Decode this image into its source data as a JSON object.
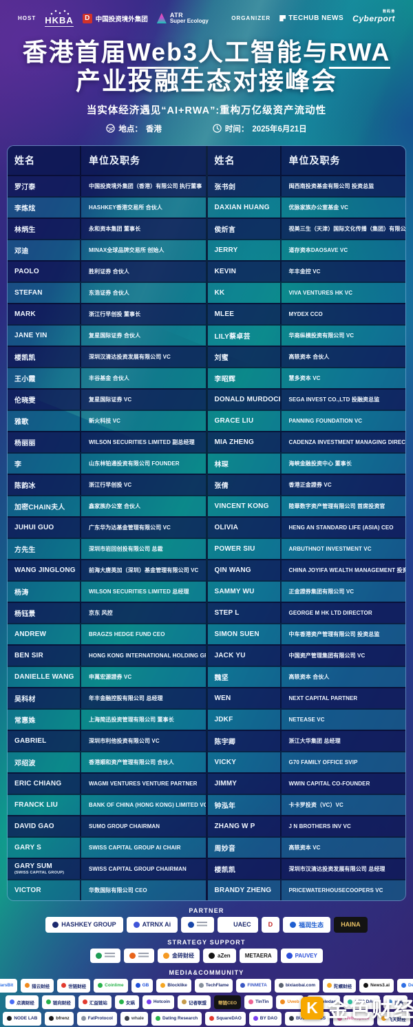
{
  "header": {
    "host_label": "HOST",
    "organizer_label": "ORGANIZER",
    "hkba": "HKBA",
    "citic_icon": "D",
    "citic": "中国投资境外集团",
    "atr_line1": "ATR",
    "atr_line2": "Super Ecology",
    "techub": "TECHUB NEWS",
    "cyberport_cn": "数码港",
    "cyberport": "Cyberport"
  },
  "title": {
    "l1a": "香港首届",
    "l1b": "Web3",
    "l1c": "人工智能与",
    "l1d": "RWA",
    "l2": "产业投融生态对接峰会",
    "subtitle": "当实体经济遇见“AI+RWA”:重构万亿级资产流动性",
    "location_label": "地点：",
    "location_value": "香港",
    "time_label": "时间：",
    "time_value": "2025年6月21日"
  },
  "table": {
    "name_header": "姓名",
    "org_header": "单位及职务",
    "left_rows": [
      {
        "name": "罗汀泰",
        "org": "中国投资境外集团（香港）有限公司 执行董事"
      },
      {
        "name": "李炼炫",
        "org": "HASHKEY香港交易所 合伙人"
      },
      {
        "name": "林炳生",
        "org": "永和资本集团 董事长"
      },
      {
        "name": "邓迪",
        "org": "MINAX全球品牌交易所 创始人"
      },
      {
        "name": "PAOLO",
        "org": "胜利证券 合伙人"
      },
      {
        "name": "STEFAN",
        "org": "东浩证券 合伙人"
      },
      {
        "name": "MARK",
        "org": "浙江行早创投 董事长"
      },
      {
        "name": "JANE YIN",
        "org": "复星国际证券 合伙人"
      },
      {
        "name": "楼凯凯",
        "org": "深圳汉清达投资发展有限公司 VC"
      },
      {
        "name": "王小霞",
        "org": "丰谷基金 合伙人"
      },
      {
        "name": "伦晓雯",
        "org": "复星国际证券 VC"
      },
      {
        "name": "雅歌",
        "org": "新火科技 VC"
      },
      {
        "name": "杨丽丽",
        "org": "WILSON SECURITIES LIMITED 副总经理"
      },
      {
        "name": "李",
        "org": "山东林铂通投资有限公司 FOUNDER"
      },
      {
        "name": "陈韵冰",
        "org": "浙江行早创投 VC"
      },
      {
        "name": "加密CHAIN夫人",
        "org": "鑫家族办公室 合伙人"
      },
      {
        "name": "JUHUI GUO",
        "org": "广东华为达基金管理有限公司 VC"
      },
      {
        "name": "方先生",
        "org": "深圳市岩回创投有限公司 总裁"
      },
      {
        "name": "WANG JINGLONG",
        "org": "前海大唐英加（深圳）基金管理有限公司 VC"
      },
      {
        "name": "杨涛",
        "org": "WILSON SECURITIES LIMITED 总经理"
      },
      {
        "name": "杨钰景",
        "org": "京东 风控"
      },
      {
        "name": "ANDREW",
        "org": "BRAGZS HEDGE FUND CEO"
      },
      {
        "name": "BEN SIR",
        "org": "HONG KONG INTERNATIONAL HOLDING GROUP. CEO"
      },
      {
        "name": "DANIELLE WANG",
        "org": "申萬宏源證券 VC"
      },
      {
        "name": "吴科材",
        "org": "年丰金融控股有限公司 总经理"
      },
      {
        "name": "常惠姝",
        "org": "上海简迅投资管理有限公司 董事长"
      },
      {
        "name": "GABRIEL",
        "org": "深圳市利他投资有限公司 VC"
      },
      {
        "name": "邓绍波",
        "org": "香港顺和资产管理有限公司 合伙人"
      },
      {
        "name": "ERIC CHIANG",
        "org": "WAGMI VENTURES VENTURE PARTNER"
      },
      {
        "name": "FRANCK LIU",
        "org": "BANK OF CHINA (HONG KONG) LIMITED VC"
      },
      {
        "name": "DAVID GAO",
        "org": "SUMO GROUP CHAIRMAN"
      },
      {
        "name": "GARY S",
        "org": "SWISS CAPITAL GROUP AI CHAIR"
      },
      {
        "name": "GARY SUM",
        "sub": "(SWISS CAPITAL GROUP)",
        "org": "SWISS CAPITAL GROUP CHAIRMAN"
      },
      {
        "name": "VICTOR",
        "org": "华数国际有限公司 CEO"
      }
    ],
    "right_rows": [
      {
        "name": "张书剑",
        "org": "闽西南投资基金有限公司 投资总监"
      },
      {
        "name": "DAXIAN HUANG",
        "org": "优脉家族办公室基金 VC"
      },
      {
        "name": "侯炘言",
        "org": "视美三生（天津）国际文化传播（集团）有限公司 VC"
      },
      {
        "name": "JERRY",
        "org": "道存资本DAOSAVE VC"
      },
      {
        "name": "KEVIN",
        "org": "年丰金控 VC"
      },
      {
        "name": "KK",
        "org": "VIVA VENTURES HK VC"
      },
      {
        "name": "MLEE",
        "org": "MYDEX CCO"
      },
      {
        "name": "LILY蔡卓芸",
        "org": "华商纵横投资有限公司 VC"
      },
      {
        "name": "刘蜜",
        "org": "高轶资本 合伙人"
      },
      {
        "name": "李昭辉",
        "org": "慧多资本 VC"
      },
      {
        "name": "DONALD MURDOCH",
        "org": "SEGA INVEST CO.,LTD 投融资总监"
      },
      {
        "name": "GRACE LIU",
        "org": "PANNING FOUNDATION VC"
      },
      {
        "name": "MIA ZHENG",
        "org": "CADENZA INVESTMENT MANAGING DIRECTOR"
      },
      {
        "name": "林琛",
        "org": "海峡金融投资中心 董事长"
      },
      {
        "name": "张倩",
        "org": "香港正金證券 VC"
      },
      {
        "name": "VINCENT KONG",
        "org": "陸華数字资产管理有限公司 首席投资官"
      },
      {
        "name": "OLIVIA",
        "org": "HENG AN STANDARD LIFE (ASIA) CEO"
      },
      {
        "name": "POWER SIU",
        "org": "ARBUTHNOT INVESTMENT VC"
      },
      {
        "name": "QIN WANG",
        "org": "CHINA JOYIFA WEALTH MANAGEMENT 投资主管"
      },
      {
        "name": "SAMMY WU",
        "org": "正金證券集团有限公司 VC"
      },
      {
        "name": "STEP L",
        "org": "GEORGE M HK LTD DIRECTOR"
      },
      {
        "name": "SIMON SUEN",
        "org": "中车香港资产管理有限公司 投资总监"
      },
      {
        "name": "JACK YU",
        "org": "中国资产管理集团有限公司 VC"
      },
      {
        "name": "魏坚",
        "org": "高轶资本 合伙人"
      },
      {
        "name": "WEN",
        "org": "NEXT CAPITAL PARTNER"
      },
      {
        "name": "JDKF",
        "org": "NETEASE VC"
      },
      {
        "name": "陈宇卿",
        "org": "浙江大华集团 总经理"
      },
      {
        "name": "VICKY",
        "org": "G70 FAMILY OFFICE SVIP"
      },
      {
        "name": "JIMMY",
        "org": "WWIN CAPITAL CO-FOUNDER"
      },
      {
        "name": "钟泓年",
        "org": "卡卡罗投资（VC）VC"
      },
      {
        "name": "ZHANG W P",
        "org": "J N BROTHERS INV VC"
      },
      {
        "name": "周妙音",
        "org": "高轶资本 VC"
      },
      {
        "name": "楼凯凯",
        "org": "深圳市汉清达投资发展有限公司 总经理"
      },
      {
        "name": "BRANDY ZHENG",
        "org": "PRICEWATERHOUSECOOPERS VC"
      }
    ]
  },
  "footer": {
    "partner_label": "PARTNER",
    "partners": [
      {
        "label": "HASHKEY GROUP",
        "dot": "#1c2a6e"
      },
      {
        "label": "ATRNX Ai",
        "dot": "#3f55d8"
      },
      {
        "label": "",
        "dot": "#1846a8"
      },
      {
        "label": "UAEC",
        "dot": "#d8a row",
        "tc": "#1c2a6e"
      },
      {
        "label": "D",
        "dot": null,
        "tc": "#c01f1f"
      },
      {
        "label": "福润生态",
        "dot": "#1f5fd0",
        "tc": "#1f5fd0"
      },
      {
        "label": "HAINA",
        "dark": true
      }
    ],
    "strategy_label": "STRATEGY SUPPORT",
    "strategy": [
      {
        "label": "",
        "dot": "#1f9d55"
      },
      {
        "label": "",
        "dot": "#e8641a"
      },
      {
        "label": "金砖财经",
        "dot": "#f59a23"
      },
      {
        "label": "aZen",
        "dot": "#141414",
        "tc": "#141414"
      },
      {
        "label": "METAERA",
        "dot": null,
        "tc": "#141414"
      },
      {
        "label": "PAUVEY",
        "dot": "#2b4fd8",
        "tc": "#2b4fd8"
      }
    ],
    "media_label": "MEDIA&COMMUNITY",
    "media_row1": [
      {
        "label": "MarsBit",
        "dot": "#2f6fe4",
        "tc": "#2f6fe4"
      },
      {
        "label": "猎云财经",
        "dot": "#f08a1d"
      },
      {
        "label": "世链财经",
        "dot": "#e23a2e"
      },
      {
        "label": "Coinlime",
        "dot": "#27b24a",
        "tc": "#27b24a"
      },
      {
        "label": "GB",
        "dot": "#1f4fd8",
        "tc": "#1f4fd8"
      },
      {
        "label": "Blocklike",
        "dot": "#f5a623"
      },
      {
        "label": "TechFlame",
        "dot": "#86909c"
      },
      {
        "label": "FINMETA",
        "dot": "#3a57c4",
        "tc": "#3a57c4"
      },
      {
        "label": "bixiaobai.com",
        "dot": "#5a6270"
      },
      {
        "label": "陀螺财经",
        "dot": "#f5a623"
      },
      {
        "label": "News3.ai",
        "dot": "#141414",
        "tc": "#141414"
      },
      {
        "label": "DeFam",
        "dot": "#2f6fe4",
        "tc": "#2f6fe4"
      }
    ],
    "media_row2": [
      {
        "label": "点滴财经",
        "dot": "#4a6cf7"
      },
      {
        "label": "链向财经",
        "dot": "#27b24a"
      },
      {
        "label": "汇益链站",
        "dot": "#e23a2e"
      },
      {
        "label": "女娲",
        "dot": "#27b24a"
      },
      {
        "label": "Hotcoin",
        "dot": "#7a3ff0"
      },
      {
        "label": "记者联盟",
        "dot": "#c59a4a"
      },
      {
        "label": "帮链CEO",
        "dark": true
      },
      {
        "label": "TinTin",
        "dot": "#f06292"
      },
      {
        "label": "Uweb",
        "dot": "#f08a1d",
        "tc": "#f08a1d"
      },
      {
        "label": "moledao",
        "dot": "#e23a2e"
      },
      {
        "label": "1783 DAO",
        "dot": "#2fbf9f"
      },
      {
        "label": "比推",
        "dot": "#4a90d9"
      }
    ],
    "media_row3": [
      {
        "label": "NODE LAB",
        "dot": "#1a1a1a"
      },
      {
        "label": "bfrenz",
        "dot": "#1a1a1a",
        "tc": "#1a1a1a"
      },
      {
        "label": "FatProtocol",
        "dot": "#8a93a3"
      },
      {
        "label": "whale",
        "dot": "#3a3f4a",
        "tc": "#3a3f4a"
      },
      {
        "label": "Dating Research",
        "dot": "#27b24a"
      },
      {
        "label": "SquareDAO",
        "dot": "#e23a2e"
      },
      {
        "label": "BY DAO",
        "dot": "#7a3ff0"
      },
      {
        "label": "BUDAO LABS",
        "dot": "#333a45"
      },
      {
        "label": "Web3Space",
        "dot": "#e667a8",
        "tc": "#e667a8"
      },
      {
        "label": "飞天财经",
        "dot": "#f5a623"
      }
    ],
    "watermark_icon": "K",
    "watermark": "金色财经"
  },
  "colors": {
    "row_navy": "#12205c",
    "row_teal": "#0f6e84",
    "table_border": "#79c7f2",
    "gold": "#f7a800",
    "accent_green": "#0fa98e"
  }
}
